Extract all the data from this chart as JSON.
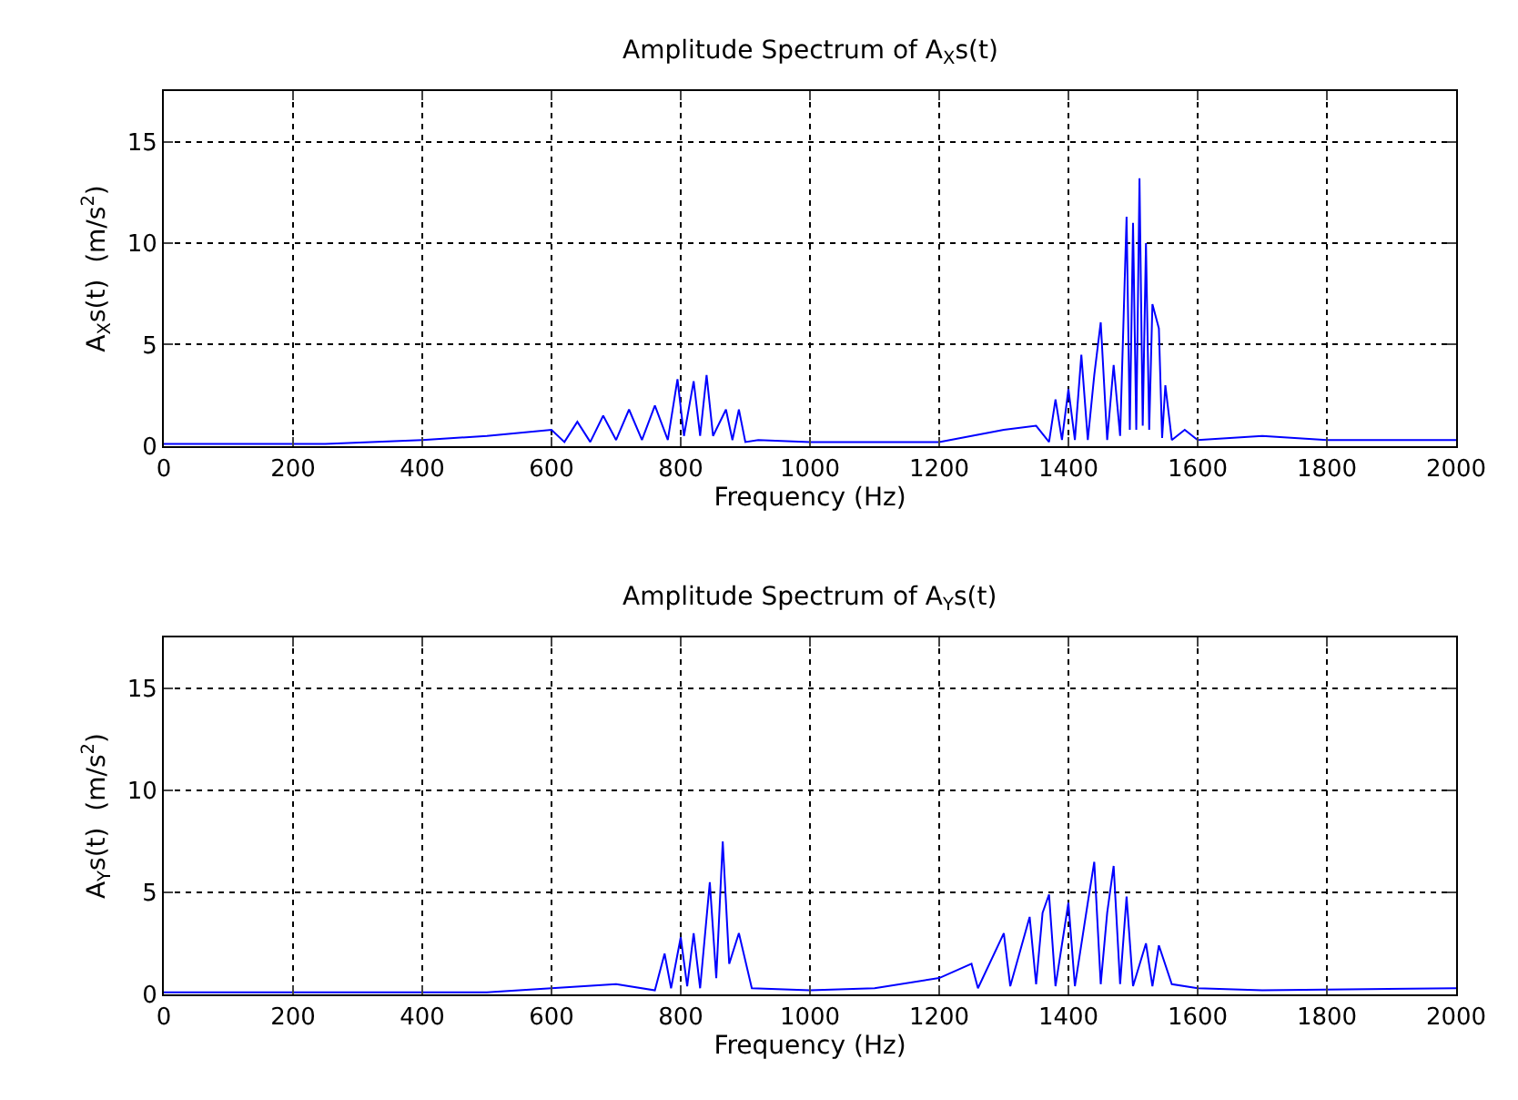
{
  "chart_data": [
    {
      "type": "line",
      "title": "Amplitude Spectrum of A$_{X}$s(t)",
      "xlabel": "Frequency (Hz)",
      "ylabel": "A$_{X}$s(t)  (m/s$^{2}$)",
      "x": [
        0,
        250,
        400,
        500,
        600,
        620,
        640,
        660,
        680,
        700,
        720,
        740,
        760,
        780,
        795,
        805,
        820,
        830,
        840,
        850,
        870,
        880,
        890,
        900,
        920,
        1000,
        1100,
        1200,
        1300,
        1350,
        1370,
        1380,
        1390,
        1400,
        1410,
        1420,
        1430,
        1440,
        1450,
        1460,
        1470,
        1480,
        1490,
        1495,
        1500,
        1505,
        1510,
        1515,
        1520,
        1525,
        1530,
        1540,
        1545,
        1550,
        1560,
        1580,
        1600,
        1700,
        1800,
        2000
      ],
      "series": [
        {
          "color": "#0000ff",
          "values": [
            0.1,
            0.1,
            0.3,
            0.5,
            0.8,
            0.2,
            1.2,
            0.2,
            1.5,
            0.3,
            1.8,
            0.3,
            2.0,
            0.3,
            3.3,
            0.5,
            3.2,
            0.5,
            3.5,
            0.5,
            1.8,
            0.3,
            1.8,
            0.2,
            0.3,
            0.2,
            0.2,
            0.2,
            0.8,
            1.0,
            0.2,
            2.3,
            0.3,
            2.8,
            0.3,
            4.5,
            0.3,
            3.5,
            6.1,
            0.3,
            4.0,
            0.5,
            11.3,
            0.8,
            11.0,
            0.8,
            13.2,
            1.0,
            10.0,
            0.8,
            7.0,
            5.8,
            0.4,
            3.0,
            0.3,
            0.8,
            0.3,
            0.5,
            0.3,
            0.3
          ]
        }
      ],
      "xlim": [
        0,
        2000
      ],
      "ylim": [
        0,
        17.5
      ],
      "xticks": [
        0,
        200,
        400,
        600,
        800,
        1000,
        1200,
        1400,
        1600,
        1800,
        2000
      ],
      "yticks": [
        0,
        5,
        10,
        15
      ],
      "grid": true
    },
    {
      "type": "line",
      "title": "Amplitude Spectrum of A$_{Y}$s(t)",
      "xlabel": "Frequency (Hz)",
      "ylabel": "A$_{Y}$s(t)  (m/s$^{2}$)",
      "x": [
        0,
        500,
        600,
        700,
        760,
        775,
        785,
        800,
        810,
        820,
        830,
        845,
        855,
        865,
        875,
        890,
        910,
        1000,
        1100,
        1200,
        1250,
        1260,
        1300,
        1310,
        1340,
        1350,
        1360,
        1370,
        1380,
        1400,
        1410,
        1430,
        1440,
        1450,
        1460,
        1470,
        1480,
        1490,
        1500,
        1520,
        1530,
        1540,
        1560,
        1600,
        1700,
        2000
      ],
      "series": [
        {
          "color": "#0000ff",
          "values": [
            0.1,
            0.1,
            0.3,
            0.5,
            0.2,
            2.0,
            0.3,
            2.8,
            0.4,
            3.0,
            0.3,
            5.5,
            0.8,
            7.5,
            1.5,
            3.0,
            0.3,
            0.2,
            0.3,
            0.8,
            1.5,
            0.3,
            3.0,
            0.4,
            3.8,
            0.5,
            4.0,
            4.9,
            0.4,
            4.5,
            0.4,
            4.5,
            6.5,
            0.5,
            4.0,
            6.3,
            0.5,
            4.8,
            0.4,
            2.5,
            0.4,
            2.4,
            0.5,
            0.3,
            0.2,
            0.3
          ]
        }
      ],
      "xlim": [
        0,
        2000
      ],
      "ylim": [
        0,
        17.5
      ],
      "xticks": [
        0,
        200,
        400,
        600,
        800,
        1000,
        1200,
        1400,
        1600,
        1800,
        2000
      ],
      "yticks": [
        0,
        5,
        10,
        15
      ],
      "grid": true
    }
  ]
}
